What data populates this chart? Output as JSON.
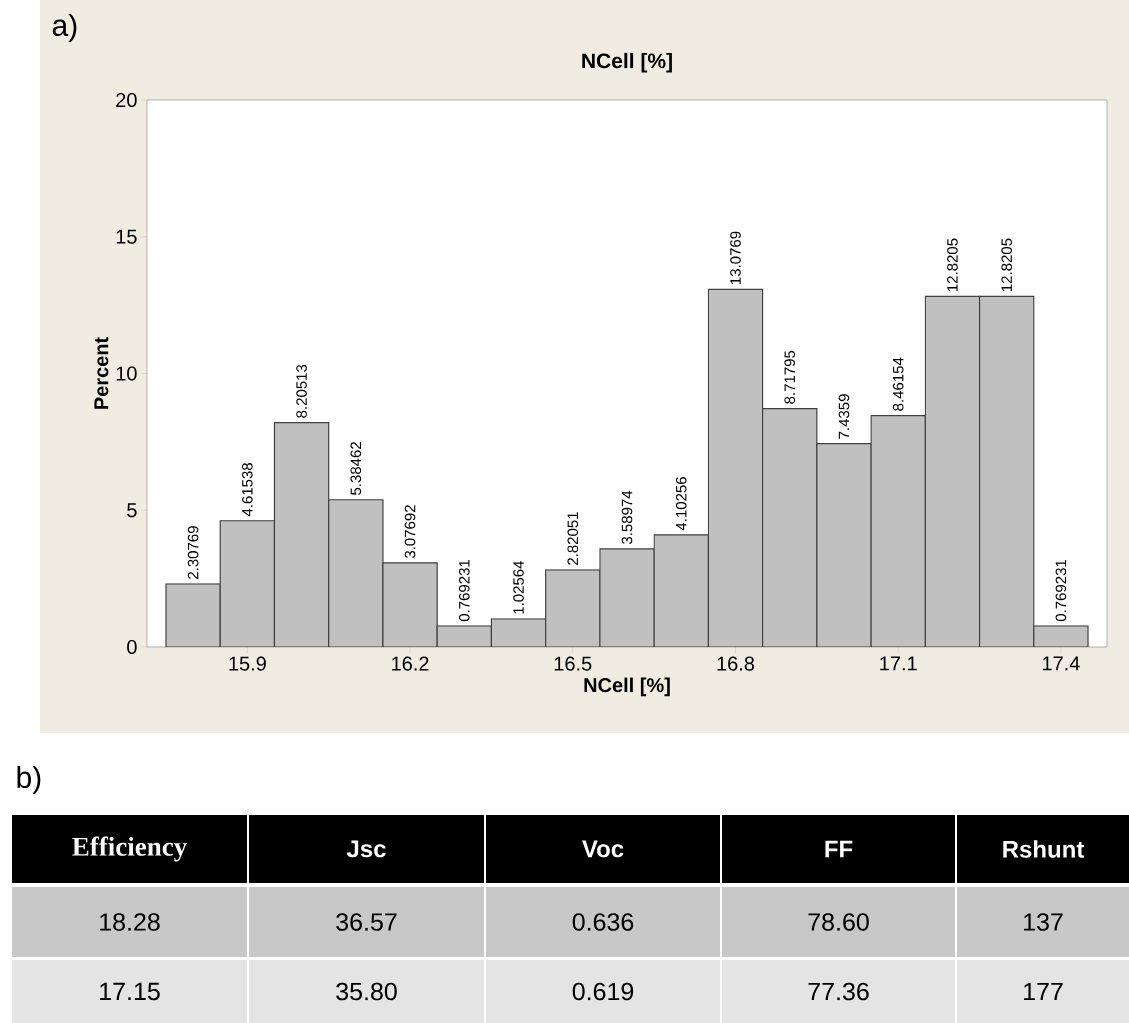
{
  "chart_data": [
    {
      "type": "histogram",
      "title": "NCell [%]",
      "xlabel": "NCell [%]",
      "ylabel": "Percent",
      "annotations": [
        "a)"
      ],
      "bins": [
        15.75,
        15.85,
        15.95,
        16.05,
        16.15,
        16.25,
        16.35,
        16.45,
        16.55,
        16.65,
        16.75,
        16.85,
        16.95,
        17.05,
        17.15,
        17.25,
        17.35,
        17.45
      ],
      "values": [
        2.30769,
        4.61538,
        8.20513,
        5.38462,
        3.07692,
        0.769231,
        1.02564,
        2.82051,
        3.58974,
        4.10256,
        13.0769,
        8.71795,
        7.4359,
        8.46154,
        12.8205,
        12.8205,
        0.769231
      ],
      "color": "#c0c0c0",
      "data_labels": true,
      "xlim": [
        15.715,
        17.485
      ],
      "xticks": [
        15.9,
        16.2,
        16.5,
        16.8,
        17.1,
        17.4
      ],
      "ylim": [
        0,
        20
      ],
      "yticks": [
        0,
        5,
        10,
        15,
        20
      ]
    },
    {
      "type": "other",
      "annotations": [
        "b)"
      ],
      "categories": [
        "Efficiency",
        "Jsc",
        "Voc",
        "FF",
        "Rshunt"
      ],
      "cell_labels": [
        [
          "18.28",
          "36.57",
          "0.636",
          "78.60",
          "137"
        ],
        [
          "17.15",
          "35.80",
          "0.619",
          "77.36",
          "177"
        ]
      ]
    }
  ]
}
